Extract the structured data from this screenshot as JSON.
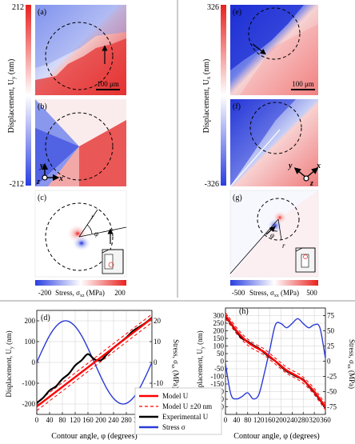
{
  "panel_labels": {
    "a": "(a)",
    "b": "(b)",
    "c": "(c)",
    "d": "(d)",
    "e": "(e)",
    "f": "(f)",
    "g": "(g)",
    "h": "(h)"
  },
  "scalebar": {
    "left": "100 μm",
    "right": "100 μm"
  },
  "colorbar_left": {
    "max": "212",
    "min": "-212",
    "label": "Displacement, U",
    "label_sub": "y",
    "label_unit": " (nm)"
  },
  "colorbar_right": {
    "max": "326",
    "min": "-326",
    "label": "Displacement, U",
    "label_sub": "x",
    "label_unit": " (nm)"
  },
  "stress_bar_left": {
    "min": "-200",
    "max": "200",
    "label": "Stress, σ",
    "label_sub": "xz",
    "label_unit": " (MPa)"
  },
  "stress_bar_right": {
    "min": "-500",
    "max": "500",
    "label": "Stress, σ",
    "label_sub": "xx",
    "label_unit": " (MPa)"
  },
  "axes_triad_left": {
    "y": "y",
    "x": "x",
    "z": "z"
  },
  "axes_triad_right": {
    "y": "y",
    "x": "x",
    "z": "z"
  },
  "annot_c": {
    "r": "r",
    "phi": "φ"
  },
  "annot_g": {
    "r": "r",
    "phi": "φ"
  },
  "plot_d": {
    "ylabel": "Displacement, U",
    "ylabel_sub": "y",
    "ylabel_unit": " (nm)",
    "y2label": "Stress, σ",
    "y2label_sub": "xz",
    "y2label_unit": " (MPa)",
    "xlabel": "Contour angle, φ (degrees)"
  },
  "plot_h": {
    "ylabel": "Displacement, U",
    "ylabel_sub": "y",
    "ylabel_unit": " (nm)",
    "y2label": "Stress, σ",
    "y2label_sub": "xx",
    "y2label_unit": " (MPa)",
    "xlabel": "Contour angle, φ (degrees)"
  },
  "legend": [
    {
      "label": "Model U",
      "color": "#ff0000",
      "style": "solid"
    },
    {
      "label": "Model U ±20 nm",
      "color": "#ff0000",
      "style": "dashed"
    },
    {
      "label": "Experimental U",
      "color": "#000000",
      "style": "solid"
    },
    {
      "label": "Stress σ",
      "color": "#2b3bd6",
      "style": "solid"
    }
  ],
  "chart_data": [
    {
      "type": "line",
      "title": "(d)",
      "xlabel": "Contour angle, φ (degrees)",
      "ylabel": "Displacement, Uy (nm)",
      "y2label": "Stress, σxz (MPa)",
      "xlim": [
        0,
        360
      ],
      "ylim": [
        -250,
        250
      ],
      "y2lim": [
        -25,
        25
      ],
      "xticks": [
        0,
        40,
        80,
        120,
        160,
        200,
        240,
        280,
        320,
        360
      ],
      "yticks": [
        -200,
        -100,
        0,
        100,
        200
      ],
      "y2ticks": [
        -20,
        -10,
        0,
        10,
        20
      ],
      "series": [
        {
          "name": "Model U",
          "axis": "left",
          "x": [
            0,
            360
          ],
          "y": [
            -212,
            212
          ]
        },
        {
          "name": "Model U ±20 nm",
          "axis": "left",
          "x": [
            0,
            360
          ],
          "y": [
            -192,
            232
          ]
        },
        {
          "name": "Model U ±20 nm",
          "axis": "left",
          "x": [
            0,
            360
          ],
          "y": [
            -232,
            192
          ]
        },
        {
          "name": "Experimental U",
          "axis": "left",
          "x": [
            0,
            20,
            40,
            60,
            80,
            100,
            120,
            140,
            160,
            180,
            200,
            220,
            240,
            260,
            280,
            300,
            320,
            340,
            360
          ],
          "y": [
            -195,
            -170,
            -135,
            -115,
            -80,
            -55,
            -15,
            10,
            40,
            15,
            10,
            40,
            70,
            95,
            120,
            150,
            170,
            190,
            215
          ]
        },
        {
          "name": "Stress σ",
          "axis": "right",
          "x": [
            0,
            20,
            40,
            60,
            80,
            100,
            120,
            140,
            160,
            180,
            200,
            220,
            240,
            260,
            280,
            300,
            320,
            340,
            360
          ],
          "y": [
            0,
            6.8,
            12.9,
            17.3,
            19.7,
            19.7,
            17.3,
            12.9,
            6.8,
            0,
            -6.8,
            -12.9,
            -17.3,
            -19.7,
            -19.7,
            -17.3,
            -12.9,
            -6.8,
            0
          ]
        }
      ]
    },
    {
      "type": "line",
      "title": "(h)",
      "xlabel": "Contour angle, φ (degrees)",
      "ylabel": "Displacement, Uy (nm)",
      "y2label": "Stress, σxx (MPa)",
      "xlim": [
        0,
        360
      ],
      "ylim": [
        -350,
        350
      ],
      "y2lim": [
        -87.5,
        87.5
      ],
      "xticks": [
        0,
        40,
        80,
        120,
        160,
        200,
        240,
        280,
        320,
        360
      ],
      "yticks": [
        -300,
        -250,
        -200,
        -150,
        -100,
        -50,
        0,
        50,
        100,
        150,
        200,
        250,
        300
      ],
      "y2ticks": [
        -75,
        -50,
        -25,
        0,
        25,
        50,
        75
      ],
      "series": [
        {
          "name": "Model U",
          "axis": "left",
          "x": [
            0,
            20,
            40,
            60,
            80,
            100,
            120,
            140,
            160,
            180,
            200,
            220,
            240,
            260,
            280,
            300,
            320,
            340,
            360
          ],
          "y": [
            300,
            250,
            200,
            160,
            125,
            100,
            80,
            60,
            30,
            0,
            -30,
            -60,
            -80,
            -100,
            -125,
            -160,
            -200,
            -250,
            -300
          ]
        },
        {
          "name": "Model U ±20 nm",
          "axis": "left",
          "x": [
            0,
            20,
            40,
            60,
            80,
            100,
            120,
            140,
            160,
            180,
            200,
            220,
            240,
            260,
            280,
            300,
            320,
            340,
            360
          ],
          "y": [
            320,
            270,
            220,
            180,
            145,
            120,
            100,
            80,
            50,
            20,
            -10,
            -40,
            -60,
            -80,
            -105,
            -140,
            -180,
            -230,
            -280
          ]
        },
        {
          "name": "Model U ±20 nm",
          "axis": "left",
          "x": [
            0,
            20,
            40,
            60,
            80,
            100,
            120,
            140,
            160,
            180,
            200,
            220,
            240,
            260,
            280,
            300,
            320,
            340,
            360
          ],
          "y": [
            280,
            230,
            180,
            140,
            105,
            80,
            60,
            40,
            10,
            -20,
            -50,
            -80,
            -100,
            -120,
            -145,
            -180,
            -220,
            -270,
            -320
          ]
        },
        {
          "name": "Experimental U",
          "axis": "left",
          "x": [
            0,
            20,
            40,
            60,
            80,
            100,
            120,
            140,
            160,
            180,
            200,
            220,
            240,
            260,
            280,
            300,
            320,
            340,
            360
          ],
          "y": [
            295,
            245,
            195,
            150,
            130,
            105,
            85,
            55,
            25,
            0,
            -35,
            -65,
            -85,
            -105,
            -120,
            -165,
            -205,
            -255,
            -305
          ]
        },
        {
          "name": "Stress σ",
          "axis": "right",
          "x": [
            0,
            20,
            40,
            60,
            80,
            100,
            120,
            140,
            160,
            180,
            200,
            220,
            240,
            260,
            280,
            300,
            320,
            340,
            360
          ],
          "y": [
            -5,
            -55,
            -62,
            -58,
            -52,
            -62,
            -55,
            -20,
            20,
            60,
            62,
            55,
            62,
            70,
            62,
            55,
            60,
            55,
            5
          ]
        }
      ]
    }
  ]
}
